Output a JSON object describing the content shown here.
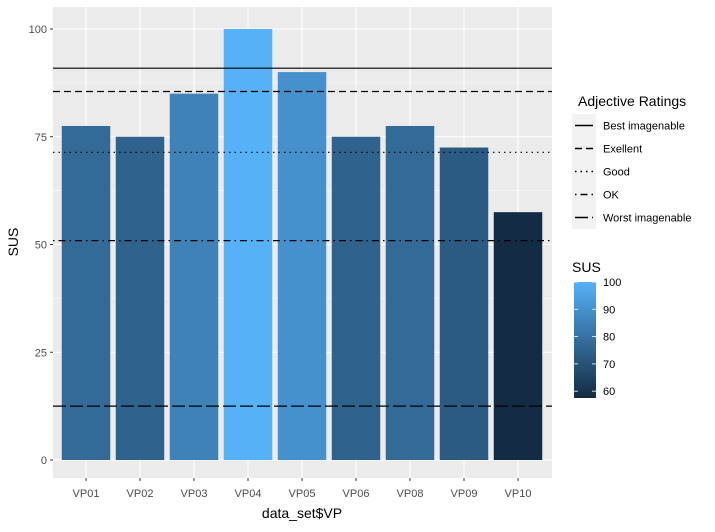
{
  "chart_data": {
    "type": "bar",
    "categories": [
      "VP01",
      "VP02",
      "VP03",
      "VP04",
      "VP05",
      "VP06",
      "VP08",
      "VP09",
      "VP10"
    ],
    "values": [
      77.5,
      75,
      85,
      100,
      90,
      75,
      77.5,
      72.5,
      57.5
    ],
    "xlabel": "data_set$VP",
    "ylabel": "SUS",
    "ylim": [
      0,
      100
    ],
    "yticks": [
      0,
      25,
      50,
      75,
      100
    ],
    "grid": true,
    "fill_scale": {
      "title": "SUS",
      "min": 57.5,
      "max": 100,
      "low_color": "#132B43",
      "high_color": "#56B1F7",
      "ticks": [
        60,
        70,
        80,
        90,
        100
      ]
    },
    "reference_lines": {
      "title": "Adjective Ratings",
      "lines": [
        {
          "name": "Best imagenable",
          "value": 90.9,
          "style": "solid"
        },
        {
          "name": "Exellent",
          "value": 85.5,
          "style": "dashed"
        },
        {
          "name": "Good",
          "value": 71.4,
          "style": "dotted"
        },
        {
          "name": "OK",
          "value": 50.9,
          "style": "dotdash"
        },
        {
          "name": "Worst imagenable",
          "value": 12.5,
          "style": "longdash"
        }
      ]
    },
    "legend_placement": "right"
  }
}
